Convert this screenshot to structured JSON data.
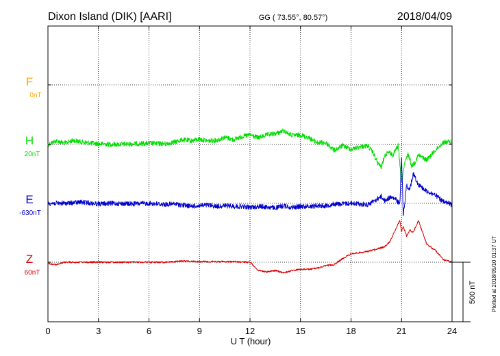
{
  "header": {
    "station": "Dixon Island (DIK)  [AARI]",
    "coords": "GG ( 73.55°,  80.57°)",
    "date": "2018/04/09"
  },
  "footer": {
    "plotted": "Plotted at 2018/05/10 01:37 UT"
  },
  "colors": {
    "F": "#ffa500",
    "H": "#00dd00",
    "E": "#0000cc",
    "Z": "#dd0000",
    "axis": "#000000"
  },
  "chart_data": {
    "type": "line",
    "title": "Dixon Island (DIK)  [AARI]",
    "xlabel": "U T (hour)",
    "ylabel": "",
    "xlim": [
      0,
      24
    ],
    "x_ticks": [
      0,
      3,
      6,
      9,
      12,
      15,
      18,
      21,
      24
    ],
    "x_tick_labels": [
      "0",
      "3",
      "6",
      "9",
      "12",
      "15",
      "18",
      "21",
      "24"
    ],
    "grid": true,
    "scale_bar": {
      "label": "500 nT",
      "value_nT": 500
    },
    "series": [
      {
        "name": "F",
        "baseline": "0nT",
        "x": [],
        "y": []
      },
      {
        "name": "H",
        "baseline": "20nT",
        "x": [
          0,
          0.5,
          1,
          1.5,
          2,
          3,
          4,
          5,
          6,
          7,
          7.5,
          8,
          8.5,
          9,
          9.5,
          10,
          10.5,
          11,
          11.5,
          12,
          12.5,
          13,
          13.5,
          14,
          14.5,
          15,
          15.5,
          16,
          16.5,
          17,
          17.5,
          18,
          18.5,
          19,
          19.3,
          19.6,
          19.8,
          20,
          20.2,
          20.5,
          20.8,
          21,
          21.1,
          21.2,
          21.4,
          21.6,
          21.8,
          22,
          22.5,
          23,
          23.5,
          24
        ],
        "y": [
          0,
          30,
          10,
          35,
          20,
          5,
          0,
          5,
          10,
          5,
          20,
          40,
          30,
          45,
          30,
          35,
          60,
          40,
          65,
          80,
          55,
          80,
          90,
          115,
          75,
          80,
          55,
          15,
          15,
          -50,
          -10,
          -40,
          -20,
          -10,
          -70,
          -160,
          -190,
          -100,
          -60,
          -90,
          -10,
          -330,
          -230,
          -150,
          -80,
          -180,
          -150,
          -90,
          -130,
          -50,
          20,
          20
        ]
      },
      {
        "name": "E",
        "baseline": "-630nT",
        "x": [
          0,
          1,
          2,
          3,
          4,
          5,
          6,
          7,
          7.5,
          8,
          8.5,
          9,
          9.5,
          10,
          10.5,
          11,
          11.5,
          12,
          12.5,
          13,
          13.5,
          14,
          14.5,
          15,
          15.5,
          16,
          16.5,
          17,
          17.5,
          18,
          18.5,
          19,
          19.5,
          19.8,
          20,
          20.3,
          20.6,
          20.9,
          21,
          21.1,
          21.3,
          21.5,
          21.7,
          22,
          22.5,
          23,
          23.5,
          24
        ],
        "y": [
          0,
          0,
          10,
          -5,
          0,
          -5,
          0,
          -10,
          -5,
          -15,
          -25,
          -20,
          -15,
          -25,
          -20,
          -25,
          -25,
          -35,
          -25,
          -30,
          -40,
          -20,
          -35,
          -25,
          -25,
          -20,
          -20,
          -5,
          -5,
          0,
          -5,
          -10,
          30,
          60,
          20,
          50,
          40,
          -5,
          400,
          -100,
          150,
          120,
          250,
          160,
          100,
          70,
          10,
          -10
        ]
      },
      {
        "name": "Z",
        "baseline": "60nT",
        "x": [
          0,
          0.5,
          1,
          2,
          3,
          4,
          5,
          6,
          7,
          8,
          9,
          10,
          11,
          12,
          12.5,
          13,
          13.5,
          14,
          14.5,
          15,
          15.5,
          16,
          16.5,
          17,
          17.5,
          18,
          18.5,
          19,
          19.5,
          20,
          20.3,
          20.6,
          20.9,
          21,
          21.1,
          21.3,
          21.5,
          21.7,
          22,
          22.5,
          23,
          23.5,
          24
        ],
        "y": [
          -10,
          -20,
          0,
          0,
          0,
          0,
          0,
          0,
          0,
          10,
          5,
          5,
          5,
          0,
          -70,
          -80,
          -70,
          -90,
          -70,
          -60,
          -60,
          -50,
          -30,
          -20,
          30,
          70,
          80,
          90,
          110,
          130,
          170,
          260,
          350,
          260,
          300,
          220,
          270,
          250,
          350,
          150,
          100,
          20,
          0
        ]
      }
    ]
  }
}
